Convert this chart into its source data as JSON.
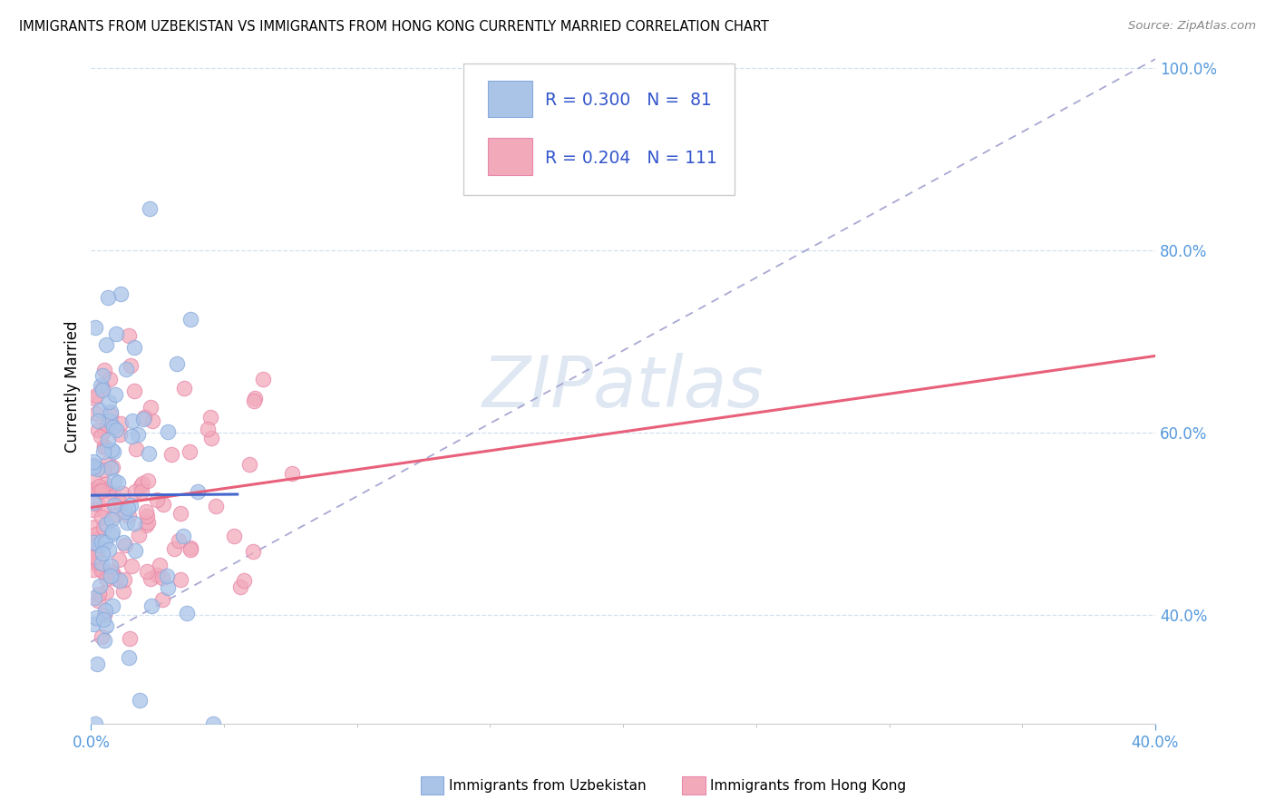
{
  "title": "IMMIGRANTS FROM UZBEKISTAN VS IMMIGRANTS FROM HONG KONG CURRENTLY MARRIED CORRELATION CHART",
  "source": "Source: ZipAtlas.com",
  "ylabel": "Currently Married",
  "xmin": 0.0,
  "xmax": 0.4,
  "ymin": 0.28,
  "ymax": 1.02,
  "uzbekistan_color": "#aac4e8",
  "uzbekistan_edge_color": "#88aadd",
  "hongkong_color": "#f2aabb",
  "hongkong_edge_color": "#e888aa",
  "uzbekistan_line_color": "#4466cc",
  "hongkong_line_color": "#e8607a",
  "uzbekistan_R": 0.3,
  "uzbekistan_N": 81,
  "hongkong_R": 0.204,
  "hongkong_N": 111,
  "legend_R_color": "#3355cc",
  "watermark": "ZIPatlas",
  "legend_label_uzbekistan": "Immigrants from Uzbekistan",
  "legend_label_hongkong": "Immigrants from Hong Kong",
  "ref_line_color": "#9999cc",
  "grid_color": "#ccddee",
  "tick_color": "#5599dd",
  "background_color": "#ffffff"
}
